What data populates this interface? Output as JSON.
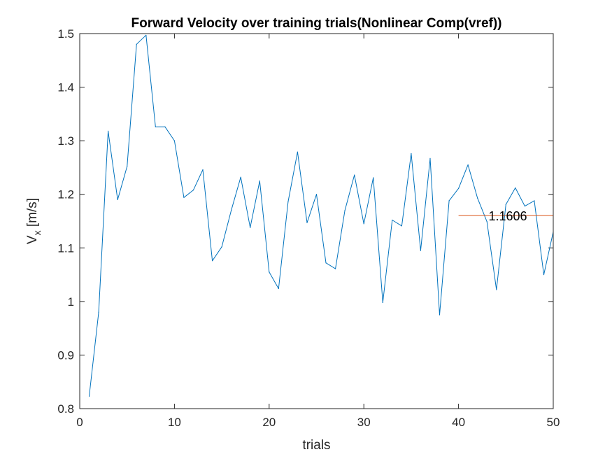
{
  "chart_data": {
    "type": "line",
    "title": "Forward Velocity over training trials(Nonlinear Comp(vref))",
    "xlabel": "trials",
    "ylabel": {
      "main": "V",
      "sub": "x",
      "unit": " [m/s]"
    },
    "xlim": [
      0,
      50
    ],
    "ylim": [
      0.8,
      1.5
    ],
    "xticks": [
      0,
      10,
      20,
      30,
      40,
      50
    ],
    "xtick_labels": [
      "0",
      "10",
      "20",
      "30",
      "40",
      "50"
    ],
    "yticks": [
      0.8,
      0.9,
      1.0,
      1.1,
      1.2,
      1.3,
      1.4,
      1.5
    ],
    "ytick_labels": [
      "0.8",
      "0.9",
      "1",
      "1.1",
      "1.2",
      "1.3",
      "1.4",
      "1.5"
    ],
    "grid": false,
    "series": [
      {
        "color": "#0072BD",
        "x": [
          1,
          2,
          3,
          4,
          5,
          6,
          7,
          8,
          9,
          10,
          11,
          12,
          13,
          14,
          15,
          16,
          17,
          18,
          19,
          20,
          21,
          22,
          23,
          24,
          25,
          26,
          27,
          28,
          29,
          30,
          31,
          32,
          33,
          34,
          35,
          36,
          37,
          38,
          39,
          40,
          41,
          42,
          43,
          44,
          45,
          46,
          47,
          48,
          49,
          50
        ],
        "y": [
          0.823,
          0.98,
          1.318,
          1.19,
          1.252,
          1.48,
          1.497,
          1.326,
          1.326,
          1.3,
          1.194,
          1.208,
          1.246,
          1.076,
          1.102,
          1.17,
          1.232,
          1.138,
          1.225,
          1.055,
          1.024,
          1.186,
          1.279,
          1.147,
          1.2,
          1.072,
          1.061,
          1.17,
          1.236,
          1.145,
          1.231,
          0.998,
          1.152,
          1.141,
          1.276,
          1.095,
          1.267,
          0.975,
          1.188,
          1.211,
          1.255,
          1.193,
          1.149,
          1.022,
          1.181,
          1.212,
          1.178,
          1.188,
          1.05,
          1.13
        ]
      }
    ],
    "reference_line": {
      "x": [
        40,
        50
      ],
      "y": 1.1606,
      "color": "#D95319",
      "label": "1.1606"
    }
  }
}
